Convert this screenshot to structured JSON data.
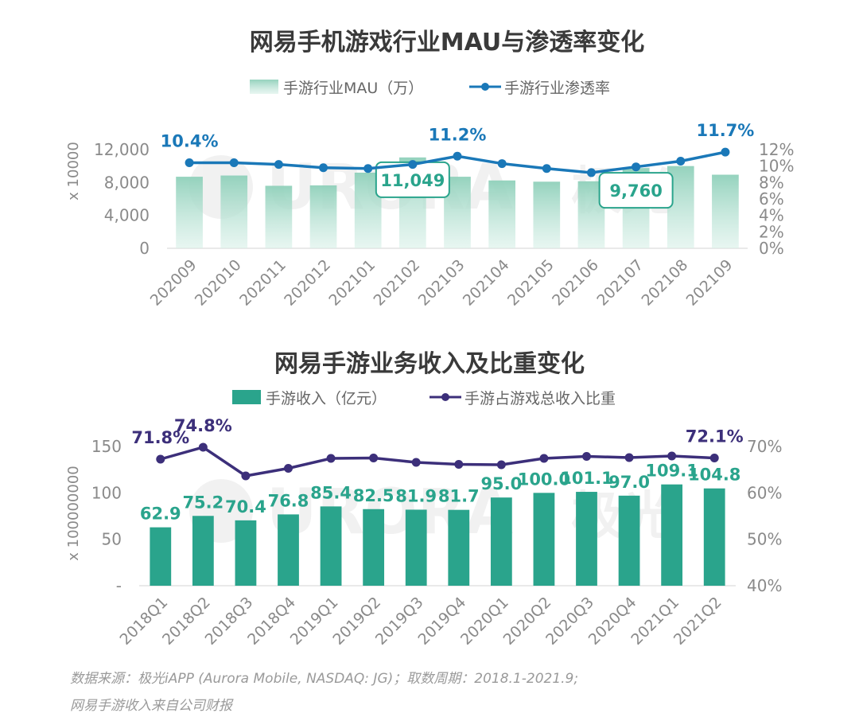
{
  "chart_data": [
    {
      "type": "bar",
      "title": "网易手机游戏行业MAU与渗透率变化",
      "ylabel": "x 10000",
      "categories": [
        "202009",
        "202010",
        "202011",
        "202012",
        "202101",
        "202102",
        "202103",
        "202104",
        "202105",
        "202106",
        "202107",
        "202108",
        "202109"
      ],
      "ylim": [
        0,
        12000
      ],
      "yticks": [
        "0",
        "4,000",
        "8,000",
        "12,000"
      ],
      "y2lim": [
        0,
        12
      ],
      "y2ticks": [
        "0%",
        "2%",
        "4%",
        "6%",
        "8%",
        "10%",
        "12%"
      ],
      "series": [
        {
          "name": "手游行业MAU（万）",
          "type": "bar",
          "color": "#9fd6c4",
          "values": [
            8700,
            8850,
            7600,
            7650,
            9200,
            11049,
            8700,
            8250,
            8100,
            8150,
            9760,
            10000,
            8950
          ]
        },
        {
          "name": "手游行业渗透率",
          "type": "line",
          "axis": "right",
          "color": "#1a78b8",
          "values": [
            10.4,
            10.4,
            10.2,
            9.8,
            9.7,
            10.2,
            11.2,
            10.3,
            9.7,
            9.2,
            9.9,
            10.6,
            11.7
          ]
        }
      ],
      "annotations": {
        "bar_callouts": [
          {
            "index": 5,
            "text": "11,049"
          },
          {
            "index": 10,
            "text": "9,760"
          }
        ],
        "line_labels": [
          {
            "index": 0,
            "text": "10.4%"
          },
          {
            "index": 6,
            "text": "11.2%"
          },
          {
            "index": 12,
            "text": "11.7%"
          }
        ]
      },
      "legend": "top"
    },
    {
      "type": "bar",
      "title": "网易手游业务收入及比重变化",
      "ylabel": "x 100000000",
      "categories": [
        "2018Q1",
        "2018Q2",
        "2018Q3",
        "2018Q4",
        "2019Q1",
        "2019Q2",
        "2019Q3",
        "2019Q4",
        "2020Q1",
        "2020Q2",
        "2020Q3",
        "2020Q4",
        "2021Q1",
        "2021Q2"
      ],
      "ylim": [
        0,
        150
      ],
      "yticks": [
        "-",
        "50",
        "100",
        "150"
      ],
      "y2lim": [
        40,
        75
      ],
      "y2ticks": [
        "40%",
        "50%",
        "60%",
        "70%"
      ],
      "series": [
        {
          "name": "手游收入（亿元）",
          "type": "bar",
          "color": "#2aa48c",
          "values": [
            62.9,
            75.2,
            70.4,
            76.8,
            85.4,
            82.5,
            81.9,
            81.7,
            95.0,
            100.0,
            101.1,
            97.0,
            109.1,
            104.8
          ],
          "labels": [
            "62.9",
            "75.2",
            "70.4",
            "76.8",
            "85.4",
            "82.5",
            "81.9",
            "81.7",
            "95.0",
            "100.0",
            "101.1",
            "97.0",
            "109.1",
            "104.8"
          ]
        },
        {
          "name": "手游占游戏总收入比重",
          "type": "line",
          "axis": "right",
          "color": "#3c2f7a",
          "values": [
            71.8,
            74.8,
            67.6,
            69.5,
            72.0,
            72.1,
            71.0,
            70.5,
            70.4,
            72.0,
            72.5,
            72.2,
            72.6,
            72.1
          ]
        }
      ],
      "annotations": {
        "line_labels": [
          {
            "index": 0,
            "text": "71.8%"
          },
          {
            "index": 1,
            "text": "74.8%"
          },
          {
            "index": 13,
            "text": "72.1%"
          }
        ]
      },
      "legend": "top"
    }
  ],
  "watermark": {
    "text": "URORA",
    "cn": "极光"
  },
  "source": {
    "line1": "数据来源：极光iAPP (Aurora Mobile, NASDAQ: JG)；取数周期：2018.1-2021.9;",
    "line2": "网易手游收入来自公司财报"
  }
}
